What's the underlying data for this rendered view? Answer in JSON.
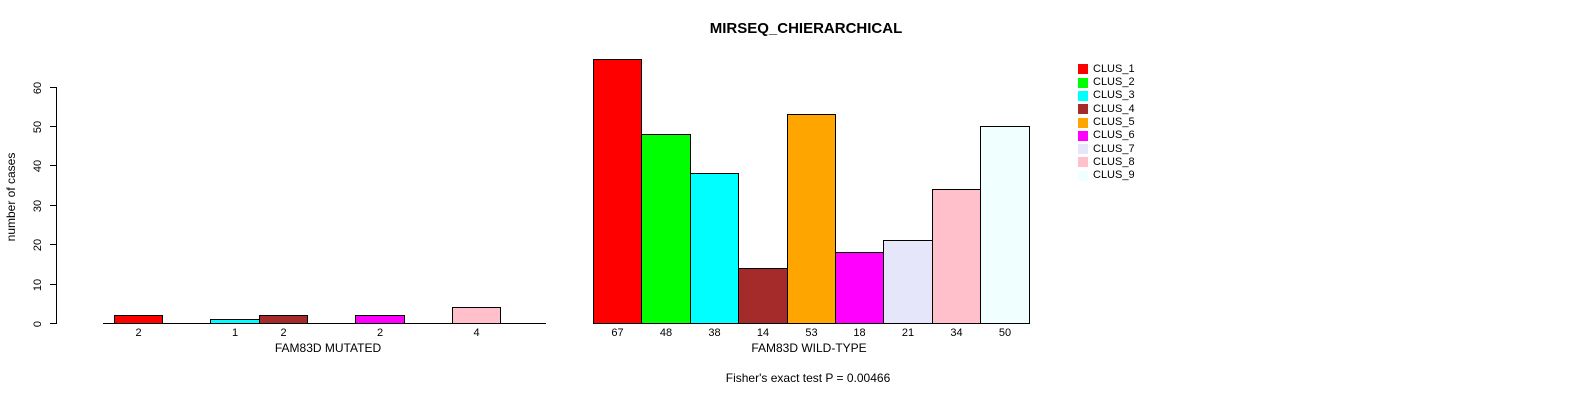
{
  "chart_data": {
    "type": "bar",
    "title": "MIRSEQ_CHIERARCHICAL",
    "ylabel": "number of cases",
    "annotation": "Fisher's exact test P = 0.00466",
    "categories": [
      "CLUS_1",
      "CLUS_2",
      "CLUS_3",
      "CLUS_4",
      "CLUS_5",
      "CLUS_6",
      "CLUS_7",
      "CLUS_8",
      "CLUS_9"
    ],
    "colors": [
      "#FF0000",
      "#00FF00",
      "#00FFFF",
      "#A52A2A",
      "#FFA500",
      "#FF00FF",
      "#E6E6FA",
      "#FFC0CB",
      "#F0FFFF"
    ],
    "series": [
      {
        "name": "FAM83D MUTATED",
        "values": [
          2,
          0,
          1,
          2,
          0,
          2,
          0,
          4,
          0
        ],
        "bar_labels": [
          "2",
          "",
          "1",
          "2",
          "",
          "2",
          "",
          "4",
          ""
        ]
      },
      {
        "name": "FAM83D WILD-TYPE",
        "values": [
          67,
          48,
          38,
          14,
          53,
          18,
          21,
          34,
          50
        ],
        "bar_labels": [
          "67",
          "48",
          "38",
          "14",
          "53",
          "18",
          "21",
          "34",
          "50"
        ]
      }
    ],
    "ylim": [
      0,
      67
    ],
    "yticks": [
      0,
      10,
      20,
      30,
      40,
      50,
      60
    ],
    "grid": false,
    "legend_position": "right",
    "legend_entries": [
      "CLUS_1",
      "CLUS_2",
      "CLUS_3",
      "CLUS_4",
      "CLUS_5",
      "CLUS_6",
      "CLUS_7",
      "CLUS_8",
      "CLUS_9"
    ]
  }
}
